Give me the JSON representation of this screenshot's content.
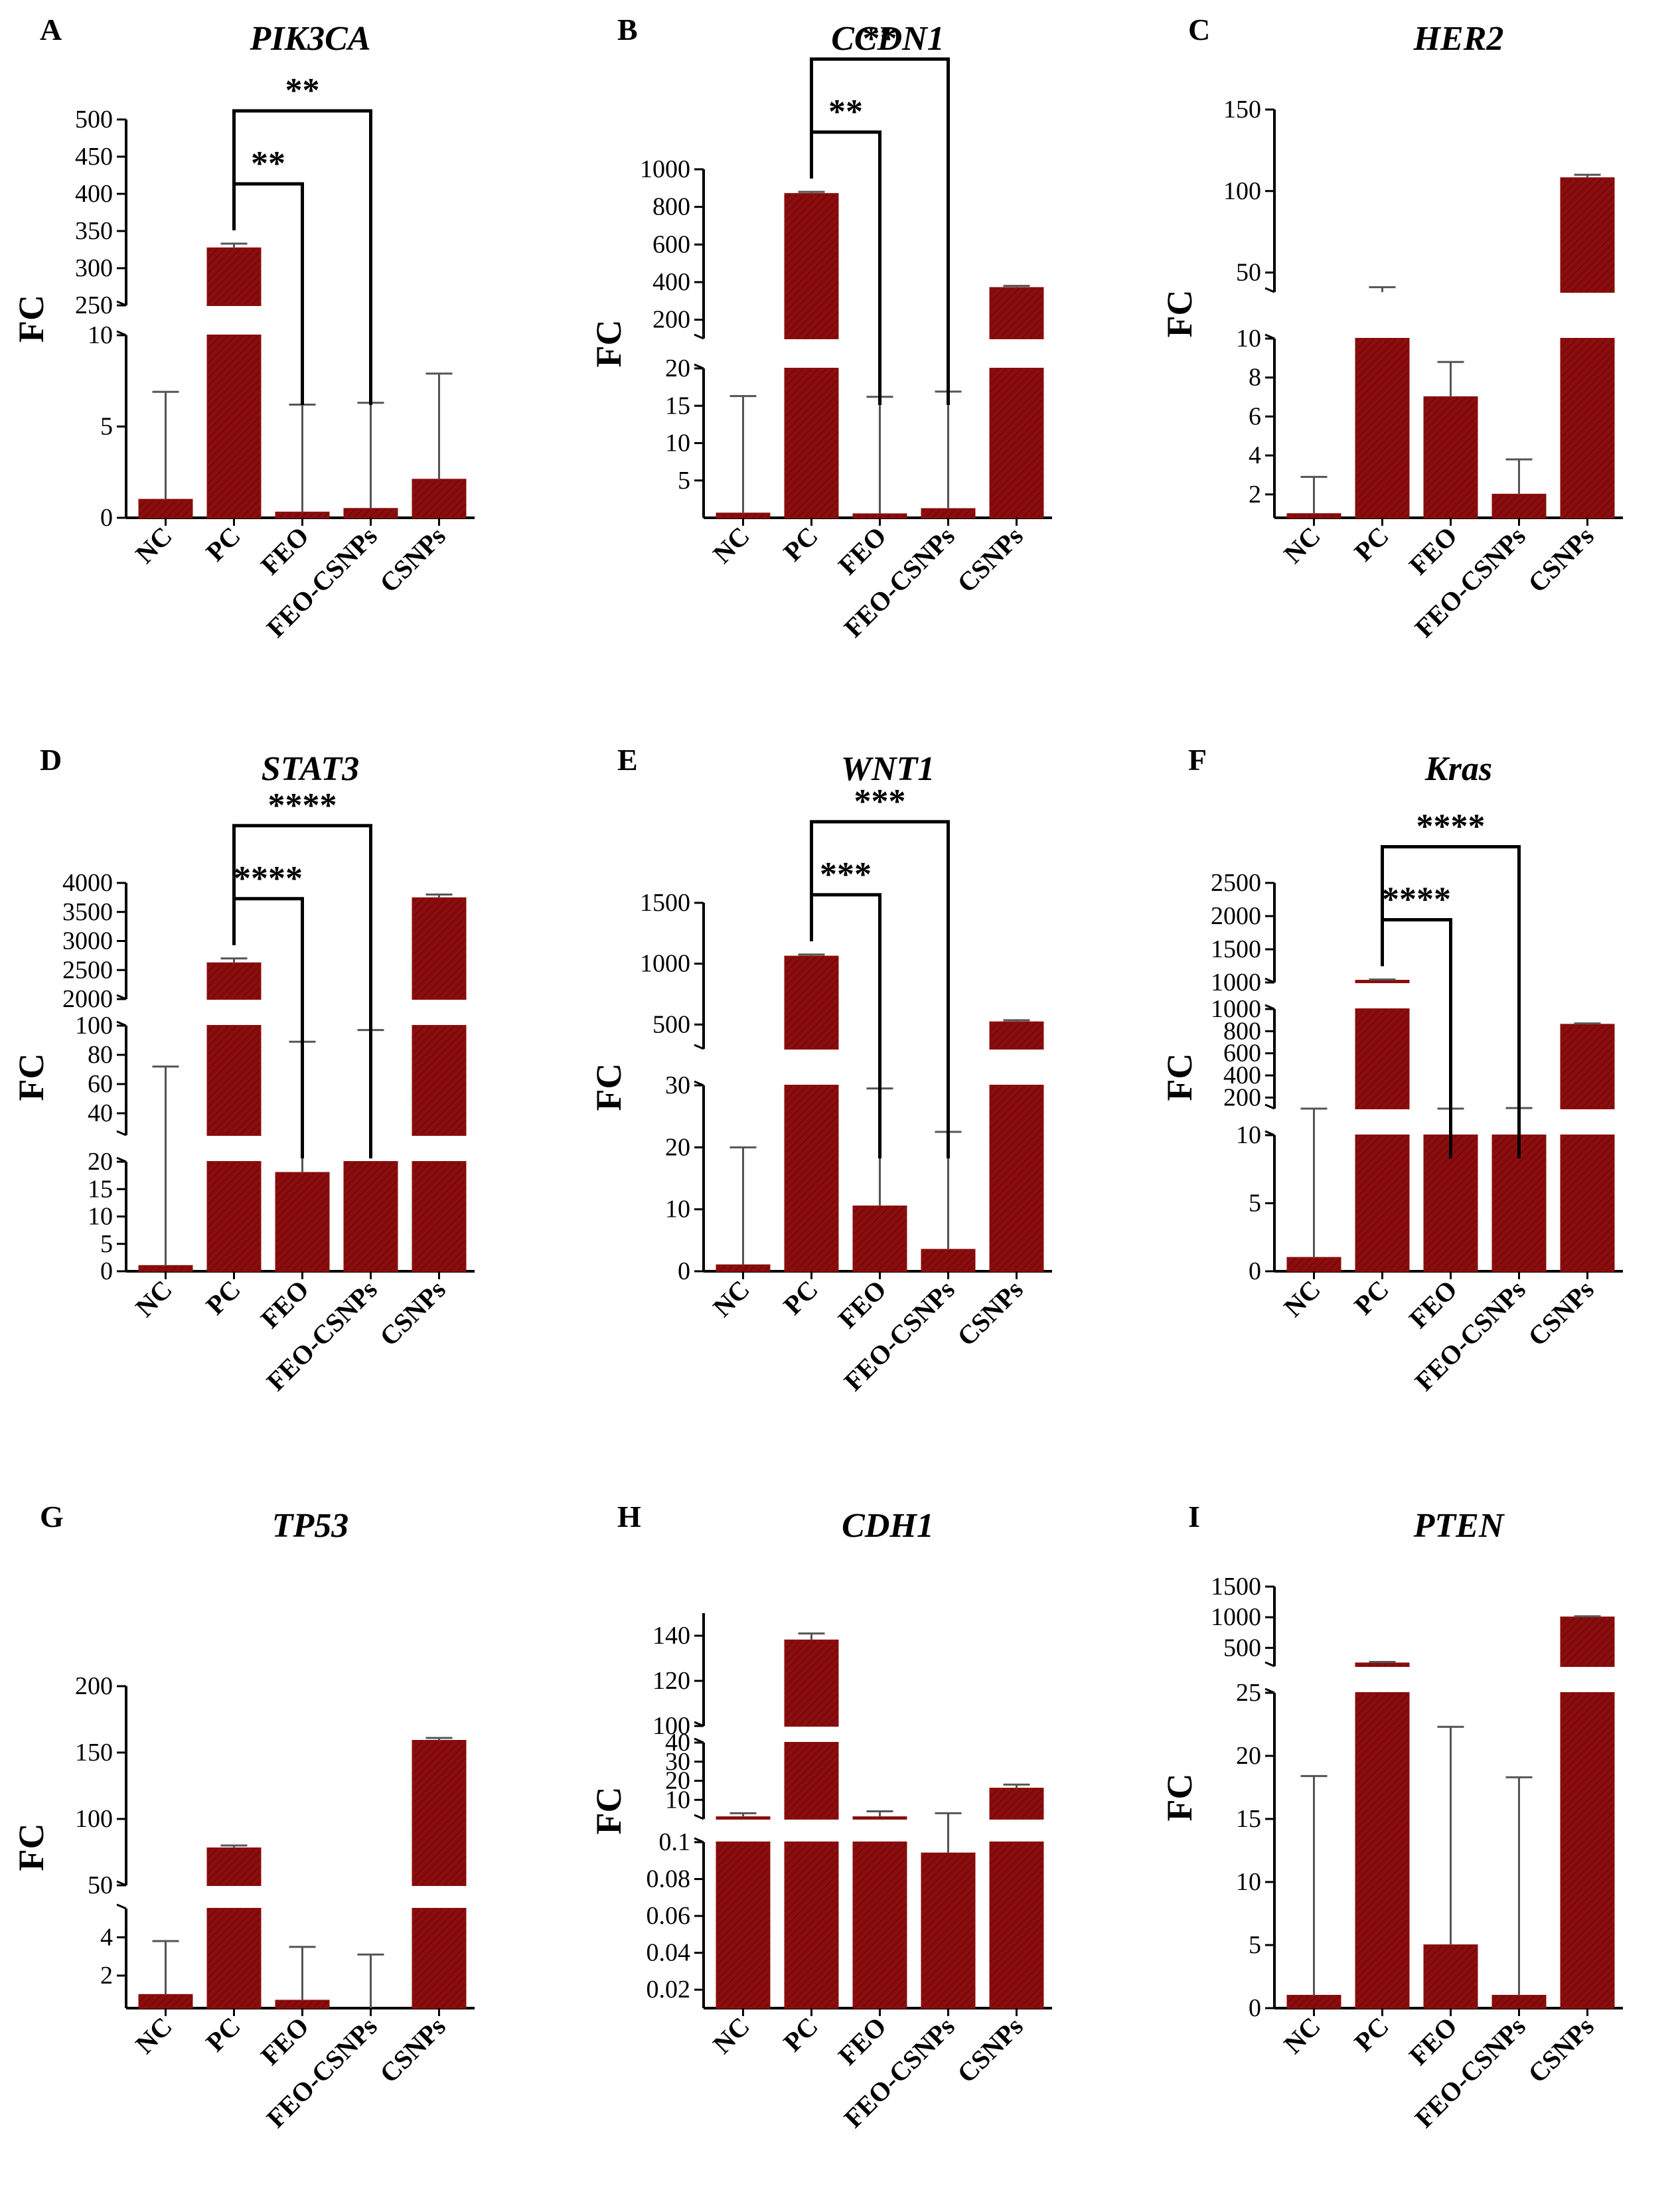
{
  "colors": {
    "bar": "#8b0d0d",
    "bar_hatch": "#6e0808",
    "axis": "#000000",
    "error": "#555555"
  },
  "chart_data": [
    {
      "panel": "A",
      "title": "PIK3CA",
      "type": "bar",
      "ylabel": "FC",
      "categories": [
        "NC",
        "PC",
        "FEO",
        "FEO-CSNPs",
        "CSNPs"
      ],
      "values": [
        1,
        327,
        0.3,
        0.5,
        2.1
      ],
      "errors": [
        6.9,
        333,
        6.2,
        6.3,
        7.9
      ],
      "segments": [
        {
          "range": [
            0,
            10
          ],
          "ticks": [
            0,
            5,
            10
          ]
        },
        {
          "range": [
            250,
            500
          ],
          "ticks": [
            250,
            300,
            350,
            400,
            450,
            500
          ]
        }
      ],
      "significance": [
        {
          "from": "PC",
          "to": "FEO",
          "label": "**"
        },
        {
          "from": "PC",
          "to": "FEO-CSNPs",
          "label": "**"
        }
      ]
    },
    {
      "panel": "B",
      "title": "CCDN1",
      "type": "bar",
      "ylabel": "FC",
      "categories": [
        "NC",
        "PC",
        "FEO",
        "FEO-CSNPs",
        "CSNPs"
      ],
      "values": [
        0.6,
        870,
        0.5,
        1.2,
        370
      ],
      "errors": [
        16.3,
        880,
        16.2,
        16.9,
        380
      ],
      "segments": [
        {
          "range": [
            0,
            20
          ],
          "ticks": [
            5,
            10,
            15,
            20
          ]
        },
        {
          "range": [
            100,
            1000
          ],
          "ticks": [
            200,
            400,
            600,
            800,
            1000
          ]
        }
      ],
      "significance": [
        {
          "from": "PC",
          "to": "FEO",
          "label": "**"
        },
        {
          "from": "PC",
          "to": "FEO-CSNPs",
          "label": "**"
        }
      ]
    },
    {
      "panel": "C",
      "title": "HER2",
      "type": "bar",
      "ylabel": "FC",
      "categories": [
        "NC",
        "PC",
        "FEO",
        "FEO-CSNPs",
        "CSNPs"
      ],
      "values": [
        1,
        38,
        7,
        2,
        108
      ],
      "errors": [
        2.9,
        41,
        8.8,
        3.8,
        110
      ],
      "segments": [
        {
          "range": [
            0.8,
            10
          ],
          "ticks": [
            2,
            4,
            6,
            8,
            10
          ]
        },
        {
          "range": [
            38,
            150
          ],
          "ticks": [
            50,
            100,
            150
          ]
        }
      ],
      "significance": []
    },
    {
      "panel": "D",
      "title": "STAT3",
      "type": "bar",
      "ylabel": "FC",
      "categories": [
        "NC",
        "PC",
        "FEO",
        "FEO-CSNPs",
        "CSNPs"
      ],
      "values": [
        1,
        2620,
        18,
        25,
        3740
      ],
      "errors": [
        72,
        2700,
        89,
        97,
        3800
      ],
      "segments": [
        {
          "range": [
            0,
            20
          ],
          "ticks": [
            0,
            5,
            10,
            15,
            20
          ]
        },
        {
          "range": [
            25,
            100
          ],
          "ticks": [
            40,
            60,
            80,
            100
          ]
        },
        {
          "range": [
            2000,
            4000
          ],
          "ticks": [
            2000,
            2500,
            3000,
            3500,
            4000
          ]
        }
      ],
      "significance": [
        {
          "from": "PC",
          "to": "FEO",
          "label": "****"
        },
        {
          "from": "PC",
          "to": "FEO-CSNPs",
          "label": "****"
        }
      ]
    },
    {
      "panel": "E",
      "title": "WNT1",
      "type": "bar",
      "ylabel": "FC",
      "categories": [
        "NC",
        "PC",
        "FEO",
        "FEO-CSNPs",
        "CSNPs"
      ],
      "values": [
        1,
        1060,
        10.5,
        3.5,
        520
      ],
      "errors": [
        20,
        1075,
        29.5,
        22.5,
        535
      ],
      "segments": [
        {
          "range": [
            0,
            30
          ],
          "ticks": [
            0,
            10,
            20,
            30
          ]
        },
        {
          "range": [
            300,
            1500
          ],
          "ticks": [
            500,
            1000,
            1500
          ]
        }
      ],
      "significance": [
        {
          "from": "PC",
          "to": "FEO",
          "label": "***"
        },
        {
          "from": "PC",
          "to": "FEO-CSNPs",
          "label": "***"
        }
      ]
    },
    {
      "panel": "F",
      "title": "Kras",
      "type": "bar",
      "ylabel": "FC",
      "categories": [
        "NC",
        "PC",
        "FEO",
        "FEO-CSNPs",
        "CSNPs"
      ],
      "values": [
        1,
        1030,
        100,
        100,
        860
      ],
      "errors": [
        100,
        1045,
        100,
        105,
        870
      ],
      "segments": [
        {
          "range": [
            0,
            10
          ],
          "ticks": [
            0,
            5,
            10
          ]
        },
        {
          "range": [
            100,
            1000
          ],
          "ticks": [
            200,
            400,
            600,
            800,
            1000
          ]
        },
        {
          "range": [
            1000,
            2500
          ],
          "ticks": [
            1000,
            1500,
            2000,
            2500
          ]
        }
      ],
      "significance": [
        {
          "from": "PC",
          "to": "FEO",
          "label": "****"
        },
        {
          "from": "PC",
          "to": "FEO-CSNPs",
          "label": "****"
        }
      ]
    },
    {
      "panel": "G",
      "title": "TP53",
      "type": "bar",
      "ylabel": "FC",
      "categories": [
        "NC",
        "PC",
        "FEO",
        "FEO-CSNPs",
        "CSNPs"
      ],
      "values": [
        1,
        78,
        0.7,
        0.2,
        159
      ],
      "errors": [
        3.8,
        80,
        3.5,
        3.1,
        161
      ],
      "segments": [
        {
          "range": [
            0.3,
            5.5
          ],
          "ticks": [
            2,
            4
          ]
        },
        {
          "range": [
            50,
            200
          ],
          "ticks": [
            50,
            100,
            150,
            200
          ]
        }
      ],
      "significance": []
    },
    {
      "panel": "H",
      "title": "CDH1",
      "type": "bar",
      "ylabel": "FC",
      "categories": [
        "NC",
        "PC",
        "FEO",
        "FEO-CSNPs",
        "CSNPs"
      ],
      "values": [
        1,
        138,
        1,
        0.094,
        16
      ],
      "errors": [
        3,
        141,
        4,
        3,
        18
      ],
      "segments": [
        {
          "range": [
            0.01,
            0.1
          ],
          "ticks": [
            0.02,
            0.04,
            0.06,
            0.08,
            0.1
          ]
        },
        {
          "range": [
            0,
            40
          ],
          "ticks": [
            10,
            20,
            30,
            40
          ]
        },
        {
          "range": [
            100,
            150
          ],
          "ticks": [
            100,
            120,
            140
          ]
        }
      ],
      "significance": []
    },
    {
      "panel": "I",
      "title": "PTEN",
      "type": "bar",
      "ylabel": "FC",
      "categories": [
        "NC",
        "PC",
        "FEO",
        "FEO-CSNPs",
        "CSNPs"
      ],
      "values": [
        1,
        250,
        5,
        1,
        1000
      ],
      "errors": [
        18.4,
        270,
        22.3,
        18.3,
        1015
      ],
      "segments": [
        {
          "range": [
            0,
            25
          ],
          "ticks": [
            0,
            5,
            10,
            15,
            20,
            25
          ]
        },
        {
          "range": [
            200,
            1500
          ],
          "ticks": [
            500,
            1000,
            1500
          ]
        }
      ],
      "significance": []
    }
  ]
}
